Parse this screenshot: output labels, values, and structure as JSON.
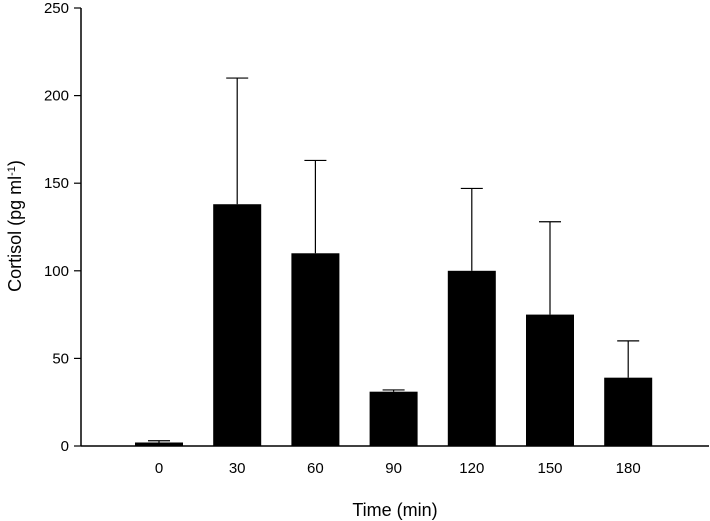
{
  "chart_data": {
    "type": "bar",
    "title": "",
    "xlabel": "Time (min)",
    "ylabel": {
      "main": "Cortisol (pg ml",
      "superscript": "-1",
      "close": ")"
    },
    "categories": [
      "0",
      "30",
      "60",
      "90",
      "120",
      "150",
      "180"
    ],
    "values": [
      2,
      138,
      110,
      31,
      100,
      75,
      39
    ],
    "error_upper": [
      3,
      210,
      163,
      32,
      147,
      128,
      60
    ],
    "ylim": [
      0,
      250
    ],
    "yticks": [
      "0",
      "50",
      "100",
      "150",
      "200",
      "250"
    ],
    "grid": false,
    "legend": "none",
    "bar_color": "#000000"
  }
}
